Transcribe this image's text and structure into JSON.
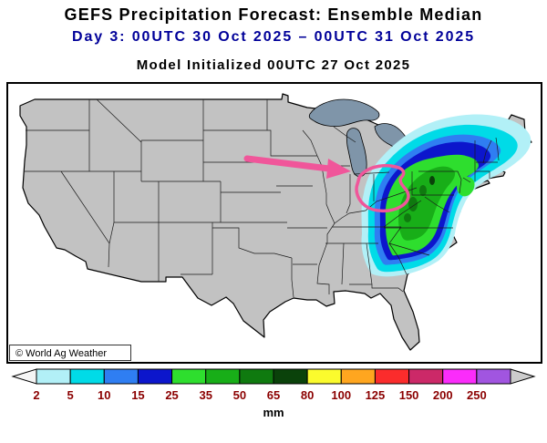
{
  "header": {
    "title": "GEFS Precipitation Forecast: Ensemble Median",
    "subtitle": "Day 3: 00UTC 30 Oct 2025 – 00UTC 31 Oct 2025",
    "init_line": "Model Initialized 00UTC 27 Oct 2025",
    "subtitle_color": "#000099"
  },
  "map": {
    "credit": "© World Ag Weather",
    "land_color": "#c2c2c2",
    "lake_color": "#7f95a9",
    "border_color": "#000000",
    "annotation_color": "#f0569a"
  },
  "colorbar": {
    "unit": "mm",
    "labels": [
      "2",
      "5",
      "10",
      "15",
      "25",
      "35",
      "50",
      "65",
      "80",
      "100",
      "125",
      "150",
      "200",
      "250"
    ],
    "cell_colors": [
      "#f5f5f5",
      "#b2f0f7",
      "#00dbe7",
      "#2f7ef2",
      "#0c16cc",
      "#2ede2e",
      "#18ae18",
      "#0f7a0f",
      "#0a420a",
      "#fbfb2d",
      "#ffa61f",
      "#fb2c2c",
      "#cc2968",
      "#fb2cfb",
      "#a155e0",
      "#cccccc"
    ],
    "label_color": "#8b0000"
  }
}
